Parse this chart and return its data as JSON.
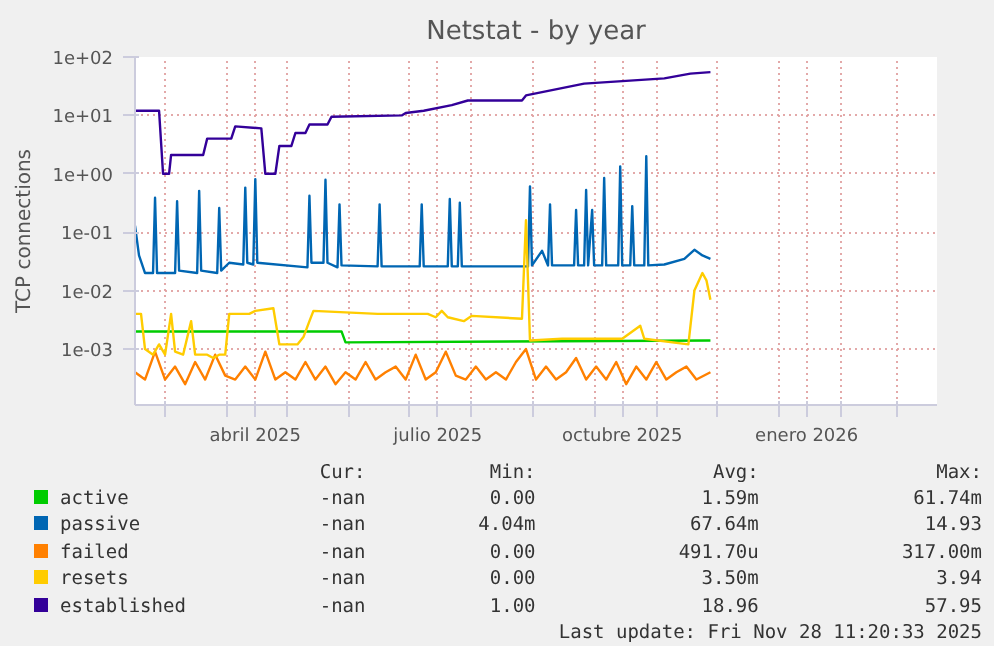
{
  "chart_data": {
    "type": "line",
    "title": "Netstat - by year",
    "ylabel": "TCP connections",
    "log": true,
    "grid": true,
    "legend": "bottom",
    "xlim": [
      "2025-02-14",
      "2026-03-21"
    ],
    "xticks": [
      {
        "value": "2025-03-01",
        "label": null
      },
      {
        "value": "2025-04-01",
        "label": null
      },
      {
        "value": "2025-04-15",
        "label": "abril 2025"
      },
      {
        "value": "2025-05-01",
        "label": null
      },
      {
        "value": "2025-06-01",
        "label": null
      },
      {
        "value": "2025-07-01",
        "label": null
      },
      {
        "value": "2025-07-15",
        "label": "julio 2025"
      },
      {
        "value": "2025-08-01",
        "label": null
      },
      {
        "value": "2025-09-01",
        "label": null
      },
      {
        "value": "2025-10-01",
        "label": null
      },
      {
        "value": "2025-10-15",
        "label": "octubre 2025"
      },
      {
        "value": "2025-11-01",
        "label": null
      },
      {
        "value": "2025-12-01",
        "label": null
      },
      {
        "value": "2026-01-01",
        "label": null
      },
      {
        "value": "2026-01-15",
        "label": "enero 2026"
      },
      {
        "value": "2026-02-01",
        "label": null
      },
      {
        "value": "2026-03-01",
        "label": null
      }
    ],
    "ylim": [
      0.00011,
      100
    ],
    "yticks": [
      {
        "value": 0.001,
        "label": "1e-03"
      },
      {
        "value": 0.01,
        "label": "1e-02"
      },
      {
        "value": 0.1,
        "label": "1e-01"
      },
      {
        "value": 1,
        "label": "1e+00"
      },
      {
        "value": 10,
        "label": "1e+01"
      },
      {
        "value": 100,
        "label": "1e+02"
      }
    ],
    "series": [
      {
        "name": "active",
        "color": "#00cc00",
        "x": [
          "2025-02-14",
          "2025-05-28",
          "2025-05-30",
          "2025-11-28"
        ],
        "values": [
          0.002,
          0.002,
          0.0013,
          0.0014
        ]
      },
      {
        "name": "passive",
        "color": "#0066b3",
        "x": [
          "2025-02-14",
          "2025-02-16",
          "2025-02-19",
          "2025-02-23",
          "2025-02-24",
          "2025-02-25",
          "2025-03-06",
          "2025-03-07",
          "2025-03-08",
          "2025-03-17",
          "2025-03-18",
          "2025-03-19",
          "2025-03-27",
          "2025-03-28",
          "2025-03-29",
          "2025-04-02",
          "2025-04-09",
          "2025-04-10",
          "2025-04-11",
          "2025-04-14",
          "2025-04-15",
          "2025-04-16",
          "2025-05-11",
          "2025-05-12",
          "2025-05-13",
          "2025-05-19",
          "2025-05-20",
          "2025-05-21",
          "2025-05-26",
          "2025-05-27",
          "2025-05-28",
          "2025-06-15",
          "2025-06-16",
          "2025-06-17",
          "2025-07-06",
          "2025-07-07",
          "2025-07-08",
          "2025-07-20",
          "2025-07-21",
          "2025-07-22",
          "2025-07-25",
          "2025-07-26",
          "2025-07-27",
          "2025-08-29",
          "2025-08-30",
          "2025-08-31",
          "2025-09-05",
          "2025-09-08",
          "2025-09-09",
          "2025-09-10",
          "2025-09-21",
          "2025-09-22",
          "2025-09-23",
          "2025-09-26",
          "2025-09-27",
          "2025-09-28",
          "2025-09-30",
          "2025-10-01",
          "2025-10-05",
          "2025-10-06",
          "2025-10-07",
          "2025-10-13",
          "2025-10-14",
          "2025-10-15",
          "2025-10-19",
          "2025-10-20",
          "2025-10-21",
          "2025-10-26",
          "2025-10-27",
          "2025-10-28",
          "2025-11-05",
          "2025-11-15",
          "2025-11-20",
          "2025-11-24",
          "2025-11-28"
        ],
        "values": [
          0.13,
          0.04,
          0.02,
          0.02,
          0.39,
          0.02,
          0.02,
          0.34,
          0.022,
          0.02,
          0.51,
          0.022,
          0.02,
          0.26,
          0.022,
          0.03,
          0.028,
          0.58,
          0.03,
          0.028,
          0.81,
          0.03,
          0.025,
          0.42,
          0.03,
          0.03,
          0.79,
          0.03,
          0.025,
          0.3,
          0.027,
          0.026,
          0.3,
          0.026,
          0.026,
          0.3,
          0.026,
          0.026,
          0.37,
          0.026,
          0.026,
          0.32,
          0.026,
          0.026,
          0.61,
          0.027,
          0.048,
          0.027,
          0.3,
          0.027,
          0.027,
          0.24,
          0.027,
          0.027,
          0.53,
          0.027,
          0.24,
          0.027,
          0.027,
          0.85,
          0.027,
          0.027,
          1.33,
          0.027,
          0.027,
          0.28,
          0.027,
          0.027,
          2.0,
          0.027,
          0.028,
          0.035,
          0.05,
          0.04,
          0.035
        ]
      },
      {
        "name": "failed",
        "color": "#ff8000",
        "x": [
          "2025-02-14",
          "2025-02-19",
          "2025-02-24",
          "2025-03-01",
          "2025-03-06",
          "2025-03-11",
          "2025-03-16",
          "2025-03-21",
          "2025-03-26",
          "2025-03-31",
          "2025-04-05",
          "2025-04-10",
          "2025-04-15",
          "2025-04-20",
          "2025-04-25",
          "2025-04-30",
          "2025-05-05",
          "2025-05-10",
          "2025-05-15",
          "2025-05-20",
          "2025-05-25",
          "2025-05-30",
          "2025-06-04",
          "2025-06-09",
          "2025-06-14",
          "2025-06-19",
          "2025-06-24",
          "2025-06-29",
          "2025-07-04",
          "2025-07-09",
          "2025-07-14",
          "2025-07-19",
          "2025-07-24",
          "2025-07-29",
          "2025-08-03",
          "2025-08-08",
          "2025-08-13",
          "2025-08-18",
          "2025-08-23",
          "2025-08-28",
          "2025-09-02",
          "2025-09-07",
          "2025-09-12",
          "2025-09-17",
          "2025-09-22",
          "2025-09-27",
          "2025-10-02",
          "2025-10-07",
          "2025-10-12",
          "2025-10-17",
          "2025-10-22",
          "2025-10-27",
          "2025-11-01",
          "2025-11-06",
          "2025-11-11",
          "2025-11-16",
          "2025-11-21",
          "2025-11-28"
        ],
        "values": [
          0.0004,
          0.0003,
          0.0009,
          0.0003,
          0.0005,
          0.00025,
          0.0006,
          0.0003,
          0.0008,
          0.00035,
          0.0003,
          0.0005,
          0.0003,
          0.0009,
          0.0003,
          0.0004,
          0.0003,
          0.0006,
          0.0003,
          0.0005,
          0.00025,
          0.0004,
          0.0003,
          0.0006,
          0.0003,
          0.0004,
          0.0005,
          0.0003,
          0.0008,
          0.0003,
          0.0004,
          0.0009,
          0.00035,
          0.0003,
          0.0005,
          0.0003,
          0.0004,
          0.0003,
          0.0006,
          0.001,
          0.0003,
          0.0005,
          0.0003,
          0.0004,
          0.0007,
          0.0003,
          0.0005,
          0.0003,
          0.0006,
          0.00025,
          0.0005,
          0.0003,
          0.0006,
          0.0003,
          0.0004,
          0.0005,
          0.0003,
          0.0004
        ]
      },
      {
        "name": "resets",
        "color": "#ffcc00",
        "x": [
          "2025-02-14",
          "2025-02-17",
          "2025-02-19",
          "2025-02-23",
          "2025-02-26",
          "2025-03-01",
          "2025-03-04",
          "2025-03-06",
          "2025-03-10",
          "2025-03-14",
          "2025-03-16",
          "2025-03-22",
          "2025-03-25",
          "2025-03-28",
          "2025-03-31",
          "2025-04-02",
          "2025-04-12",
          "2025-04-15",
          "2025-04-24",
          "2025-04-27",
          "2025-05-06",
          "2025-05-09",
          "2025-05-12",
          "2025-05-14",
          "2025-06-15",
          "2025-07-10",
          "2025-07-14",
          "2025-07-17",
          "2025-07-20",
          "2025-07-28",
          "2025-08-01",
          "2025-08-26",
          "2025-08-28",
          "2025-08-30",
          "2025-09-15",
          "2025-10-15",
          "2025-10-24",
          "2025-10-26",
          "2025-11-17",
          "2025-11-20",
          "2025-11-24",
          "2025-11-26",
          "2025-11-28"
        ],
        "values": [
          0.004,
          0.004,
          0.001,
          0.0008,
          0.0012,
          0.0008,
          0.004,
          0.0009,
          0.0008,
          0.003,
          0.0008,
          0.0008,
          0.0007,
          0.0008,
          0.0008,
          0.004,
          0.004,
          0.0045,
          0.005,
          0.0012,
          0.0012,
          0.0016,
          0.003,
          0.0045,
          0.004,
          0.004,
          0.0035,
          0.0045,
          0.0035,
          0.003,
          0.0037,
          0.0033,
          0.16,
          0.0014,
          0.0015,
          0.0015,
          0.0025,
          0.0015,
          0.0012,
          0.01,
          0.02,
          0.015,
          0.007
        ]
      },
      {
        "name": "established",
        "color": "#330099",
        "x": [
          "2025-02-14",
          "2025-02-26",
          "2025-02-28",
          "2025-03-03",
          "2025-03-04",
          "2025-03-20",
          "2025-03-22",
          "2025-04-03",
          "2025-04-05",
          "2025-04-18",
          "2025-04-20",
          "2025-04-25",
          "2025-04-27",
          "2025-05-03",
          "2025-05-05",
          "2025-05-10",
          "2025-05-12",
          "2025-05-21",
          "2025-05-23",
          "2025-06-27",
          "2025-06-29",
          "2025-07-08",
          "2025-07-22",
          "2025-07-30",
          "2025-08-26",
          "2025-08-28",
          "2025-09-26",
          "2025-11-05",
          "2025-11-18",
          "2025-11-28"
        ],
        "values": [
          12,
          12,
          1.0,
          1.0,
          2.1,
          2.1,
          4,
          4,
          6.5,
          6,
          1.0,
          1.0,
          3,
          3,
          5,
          5,
          7,
          7,
          9.5,
          10,
          11,
          12,
          15,
          18,
          18,
          22,
          35,
          43,
          52,
          55
        ]
      }
    ],
    "annotations": [
      "Cur:",
      "Min:",
      "Avg:",
      "Max:",
      "-nan",
      "0.00",
      "1.59m",
      "61.74m",
      "-nan",
      "4.04m",
      "67.64m",
      "14.93",
      "-nan",
      "0.00",
      "491.70u",
      "317.00m",
      "-nan",
      "0.00",
      "3.50m",
      "3.94",
      "-nan",
      "1.00",
      "18.96",
      "57.95",
      "Last update: Fri Nov 28 11:20:33 2025"
    ]
  }
}
